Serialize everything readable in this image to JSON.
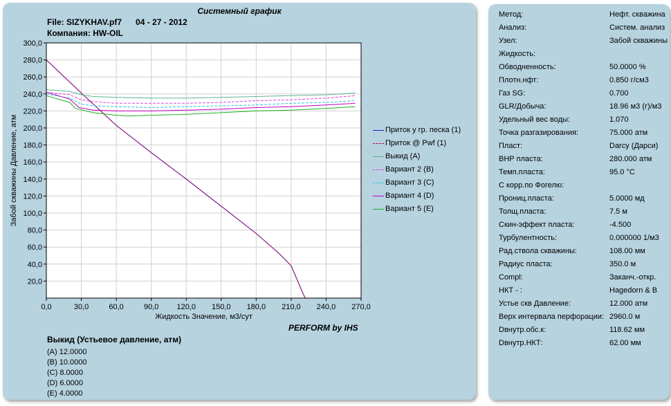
{
  "header": {
    "title": "Системный график",
    "file_line": "File: SIZYKHAV.pf7      04 - 27 - 2012",
    "company_line": "Компания: HW-OIL"
  },
  "footer": {
    "brand": "PERFORM by IHS"
  },
  "results": {
    "title": "Выкид (Устьевое давление,  атм)",
    "rows": [
      "(A)  12.0000",
      "(B)  10.0000",
      "(C)  8.0000",
      "(D)  6.0000",
      "(E)  4.0000"
    ]
  },
  "chart_data": {
    "type": "line",
    "xlabel": "Жидкость Значение, м3/сут",
    "ylabel": "Забой скважины Давление, атм",
    "xlim": [
      0,
      270
    ],
    "ylim": [
      0,
      300
    ],
    "x_ticks": [
      "0,0",
      "30,0",
      "60,0",
      "90,0",
      "120,0",
      "150,0",
      "180,0",
      "210,0",
      "240,0",
      "270,0"
    ],
    "y_ticks": [
      "20,0",
      "40,0",
      "60,0",
      "80,0",
      "100,0",
      "120,0",
      "140,0",
      "160,0",
      "180,0",
      "200,0",
      "220,0",
      "240,0",
      "260,0",
      "280,0",
      "300,0"
    ],
    "grid": true,
    "legend_position": "right",
    "series": [
      {
        "name": "Приток у гр. песка (1)",
        "color": "#1c1cc8",
        "dash": "",
        "points": [
          [
            0,
            280
          ],
          [
            30,
            241
          ],
          [
            60,
            203
          ],
          [
            90,
            171
          ],
          [
            120,
            140
          ],
          [
            150,
            108
          ],
          [
            180,
            76
          ],
          [
            200,
            52
          ],
          [
            210,
            38
          ],
          [
            220,
            6
          ],
          [
            222,
            0
          ]
        ]
      },
      {
        "name": "Приток @ Pwf (1)",
        "color": "#c0004a",
        "dash": "4,2",
        "points": [
          [
            0,
            280
          ],
          [
            30,
            241
          ],
          [
            60,
            203
          ],
          [
            90,
            171
          ],
          [
            120,
            140
          ],
          [
            150,
            108
          ],
          [
            180,
            76
          ],
          [
            200,
            52
          ],
          [
            210,
            38
          ],
          [
            220,
            6
          ],
          [
            222,
            0
          ]
        ]
      },
      {
        "name": "Выкид (A)",
        "color": "#5fb090",
        "dash": "",
        "points": [
          [
            0,
            245
          ],
          [
            20,
            243
          ],
          [
            30,
            239
          ],
          [
            40,
            237
          ],
          [
            60,
            236
          ],
          [
            90,
            235
          ],
          [
            120,
            235
          ],
          [
            150,
            236
          ],
          [
            180,
            237
          ],
          [
            210,
            238
          ],
          [
            240,
            239
          ],
          [
            265,
            241
          ]
        ]
      },
      {
        "name": "Вариант  2 (B)",
        "color": "#e040e0",
        "dash": "4,2",
        "points": [
          [
            0,
            242
          ],
          [
            20,
            239
          ],
          [
            30,
            233
          ],
          [
            40,
            231
          ],
          [
            60,
            229
          ],
          [
            90,
            229
          ],
          [
            120,
            229
          ],
          [
            150,
            230
          ],
          [
            180,
            232
          ],
          [
            210,
            233
          ],
          [
            240,
            235
          ],
          [
            265,
            238
          ]
        ]
      },
      {
        "name": "Вариант  3 (C)",
        "color": "#30c0e0",
        "dash": "4,2",
        "points": [
          [
            0,
            240
          ],
          [
            20,
            235
          ],
          [
            30,
            228
          ],
          [
            40,
            226
          ],
          [
            60,
            225
          ],
          [
            90,
            224
          ],
          [
            120,
            225
          ],
          [
            150,
            226
          ],
          [
            180,
            227
          ],
          [
            210,
            229
          ],
          [
            240,
            230
          ],
          [
            265,
            232
          ]
        ]
      },
      {
        "name": "Вариант  4 (D)",
        "color": "#c000c0",
        "dash": "",
        "points": [
          [
            0,
            242
          ],
          [
            20,
            234
          ],
          [
            28,
            224
          ],
          [
            40,
            221
          ],
          [
            60,
            220
          ],
          [
            90,
            220
          ],
          [
            120,
            221
          ],
          [
            150,
            222
          ],
          [
            180,
            224
          ],
          [
            210,
            225
          ],
          [
            240,
            227
          ],
          [
            265,
            229
          ]
        ]
      },
      {
        "name": "Вариант  5 (E)",
        "color": "#20b020",
        "dash": "",
        "points": [
          [
            0,
            238
          ],
          [
            20,
            230
          ],
          [
            25,
            223
          ],
          [
            40,
            218
          ],
          [
            60,
            215
          ],
          [
            70,
            214
          ],
          [
            90,
            215
          ],
          [
            120,
            216
          ],
          [
            150,
            218
          ],
          [
            180,
            220
          ],
          [
            210,
            221
          ],
          [
            240,
            223
          ],
          [
            265,
            225
          ]
        ]
      }
    ]
  },
  "params": [
    {
      "label": "Метод:",
      "value": "Нефт. скважина"
    },
    {
      "label": "Анализ:",
      "value": "Систем. анализ"
    },
    {
      "label": "Узел:",
      "value": "Забой скважины"
    },
    {
      "label": "Жидкость:",
      "value": ""
    },
    {
      "label": "Обводненность:",
      "value": "50.0000 %"
    },
    {
      "label": "Плотн.нфт:",
      "value": "0.850 г/см3"
    },
    {
      "label": "Газ SG:",
      "value": "0.700"
    },
    {
      "label": "GLR/Добыча:",
      "value": "18.96 м3 (г)/м3"
    },
    {
      "label": "Удельный вес воды:",
      "value": "1.070"
    },
    {
      "label": "Точка разгазирования:",
      "value": "75.000 атм"
    },
    {
      "label": "Пласт:",
      "value": "Darcy (Дарси)"
    },
    {
      "label": "ВНР пласта:",
      "value": "280.000 атм"
    },
    {
      "label": "Темп.пласта:",
      "value": "95.0 °C"
    },
    {
      "label": "С корр.по Фогелю:",
      "value": ""
    },
    {
      "label": "Прониц.пласта:",
      "value": "5.0000 мд"
    },
    {
      "label": "Толщ.пласта:",
      "value": "7.5 м"
    },
    {
      "label": "Скин-эффект пласта:",
      "value": "-4.500"
    },
    {
      "label": "Турбулентность:",
      "value": "0.000000 1/м3"
    },
    {
      "label": "Рад.ствола скважины:",
      "value": "108.00 мм"
    },
    {
      "label": "Радиус пласта:",
      "value": "350.0 м"
    },
    {
      "label": "Compl:",
      "value": "Заканч.-откр."
    },
    {
      "label": "НКТ - :",
      "value": "Hagedorn & B"
    },
    {
      "label": "Устье скв Давление:",
      "value": "12.000 атм"
    },
    {
      "label": "Верх интервала перфорации:",
      "value": "2960.0 м"
    },
    {
      "label": "Dвнутр.обс.к:",
      "value": "118.62 мм"
    },
    {
      "label": "Dвнутр.НКТ:",
      "value": "62.00 мм"
    }
  ]
}
